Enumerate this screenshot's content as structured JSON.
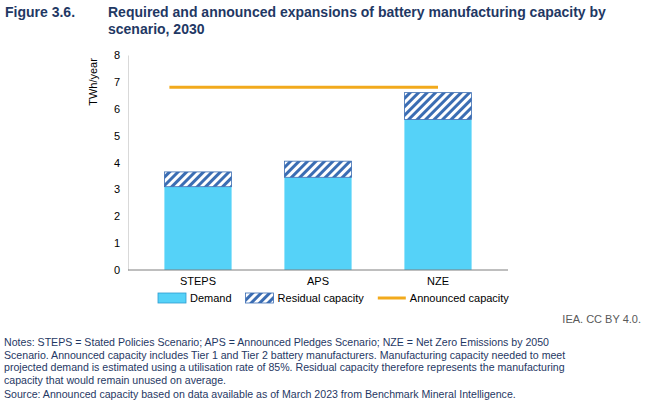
{
  "chart_data": {
    "type": "bar",
    "title": "Required and announced expansions of battery manufacturing capacity by scenario, 2030",
    "y_label": "TWh/year",
    "categories": [
      "STEPS",
      "APS",
      "NZE"
    ],
    "series": [
      {
        "name": "Demand",
        "type": "bar",
        "color": "#55d2f8",
        "values": [
          3.1,
          3.45,
          5.6
        ]
      },
      {
        "name": "Residual capacity",
        "type": "bar",
        "color": "#3b6db3",
        "values": [
          0.55,
          0.6,
          1.0
        ]
      },
      {
        "name": "Announced capacity",
        "type": "line",
        "color": "#f2aa1c",
        "values": [
          6.8,
          6.8,
          6.8
        ]
      }
    ],
    "stacked": true,
    "ylim": [
      0,
      8
    ],
    "yticks": [
      0,
      1,
      2,
      3,
      4,
      5,
      6,
      7,
      8
    ],
    "grid": false,
    "legend": "bottom",
    "annotations": [
      "Figure 3.6.",
      "IEA. CC BY 4.0.",
      "Notes: STEPS = Stated Policies Scenario; APS = Announced Pledges Scenario; NZE = Net Zero Emissions by 2050",
      "Scenario. Announced capacity includes Tier 1 and Tier 2 battery manufacturers. Manufacturing capacity needed to meet",
      "projected demand is estimated using a utilisation rate of 85%. Residual capacity therefore represents the manufacturing",
      "capacity that would remain unused on average.",
      "Source: Announced capacity based on data available as of March 2023 from Benchmark Mineral Intelligence."
    ]
  }
}
